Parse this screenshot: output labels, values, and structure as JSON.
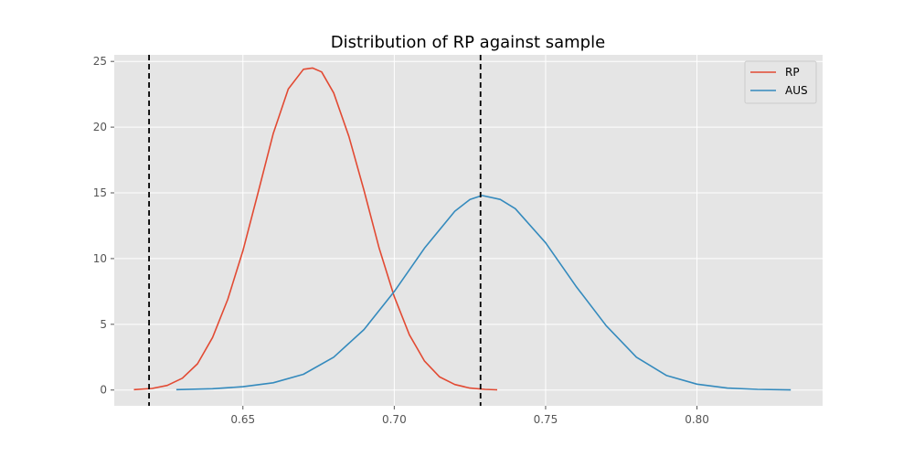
{
  "chart_data": {
    "type": "line",
    "title": "Distribution of RP against sample",
    "xlabel": "",
    "ylabel": "",
    "xlim": [
      0.6075,
      0.8415
    ],
    "ylim": [
      -1.2,
      25.5
    ],
    "grid": true,
    "legend_position": "top-right",
    "x_ticks": [
      0.65,
      0.7,
      0.75,
      0.8
    ],
    "x_tick_labels": [
      "0.65",
      "0.70",
      "0.75",
      "0.80"
    ],
    "y_ticks": [
      0,
      5,
      10,
      15,
      20,
      25
    ],
    "y_tick_labels": [
      "0",
      "5",
      "10",
      "15",
      "20",
      "25"
    ],
    "series": [
      {
        "name": "RP",
        "color": "#E24A33",
        "x": [
          0.614,
          0.62,
          0.625,
          0.63,
          0.635,
          0.64,
          0.645,
          0.65,
          0.655,
          0.66,
          0.665,
          0.67,
          0.673,
          0.676,
          0.68,
          0.685,
          0.69,
          0.695,
          0.7,
          0.705,
          0.71,
          0.715,
          0.72,
          0.725,
          0.73,
          0.734
        ],
        "values": [
          0.03,
          0.12,
          0.35,
          0.9,
          2.0,
          4.0,
          6.9,
          10.6,
          15.0,
          19.5,
          22.9,
          24.4,
          24.5,
          24.2,
          22.6,
          19.3,
          15.2,
          10.8,
          7.1,
          4.2,
          2.2,
          1.0,
          0.42,
          0.15,
          0.05,
          0.02
        ]
      },
      {
        "name": "AUS",
        "color": "#348ABD",
        "x": [
          0.628,
          0.64,
          0.65,
          0.66,
          0.67,
          0.68,
          0.69,
          0.7,
          0.71,
          0.72,
          0.725,
          0.729,
          0.735,
          0.74,
          0.75,
          0.76,
          0.77,
          0.78,
          0.79,
          0.8,
          0.81,
          0.82,
          0.831
        ],
        "values": [
          0.03,
          0.1,
          0.25,
          0.55,
          1.2,
          2.5,
          4.6,
          7.5,
          10.8,
          13.6,
          14.5,
          14.8,
          14.5,
          13.8,
          11.2,
          7.9,
          4.9,
          2.5,
          1.1,
          0.45,
          0.15,
          0.05,
          0.01
        ]
      }
    ],
    "vertical_lines": [
      0.619,
      0.7285
    ]
  }
}
